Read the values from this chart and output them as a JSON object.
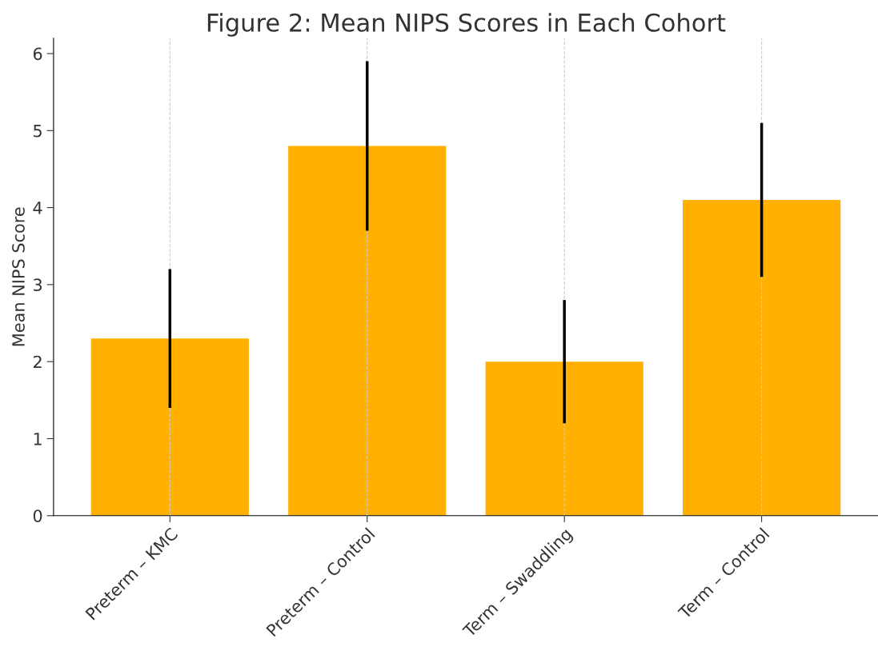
{
  "chart_data": {
    "type": "bar",
    "title": "Figure 2: Mean NIPS Scores in Each Cohort",
    "ylabel": "Mean NIPS Score",
    "categories": [
      "Preterm – KMC",
      "Preterm – Control",
      "Term – Swaddling",
      "Term – Control"
    ],
    "values": [
      2.3,
      4.8,
      2.0,
      4.1
    ],
    "errors": [
      0.9,
      1.1,
      0.8,
      1.0
    ],
    "color": "#ffb000",
    "ylim": [
      0,
      6.2
    ],
    "yticks": [
      0,
      1,
      2,
      3,
      4,
      5,
      6
    ],
    "grid": "x"
  }
}
